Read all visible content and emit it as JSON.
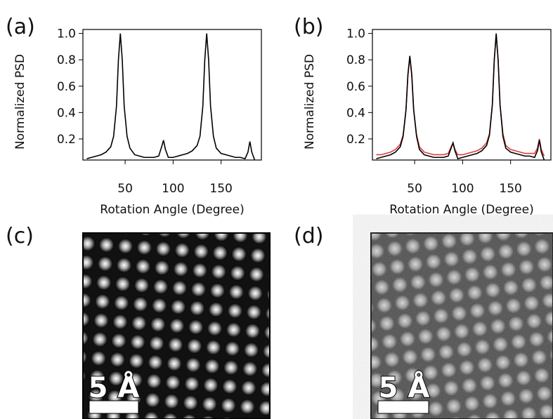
{
  "panels": [
    "(a)",
    "(b)",
    "(c)",
    "(d)"
  ],
  "scale_bars": [
    "5 Å",
    "5 Å"
  ],
  "chart_data": [
    {
      "type": "line",
      "xlabel": "Rotation Angle (Degree)",
      "ylabel": "Normalized PSD",
      "x": [
        10,
        15,
        20,
        25,
        30,
        35,
        38,
        41,
        43,
        45,
        47,
        49,
        52,
        55,
        60,
        65,
        70,
        75,
        80,
        85,
        88,
        90,
        92,
        95,
        100,
        105,
        110,
        115,
        120,
        125,
        128,
        131,
        133,
        135,
        137,
        139,
        142,
        145,
        150,
        155,
        160,
        165,
        170,
        175,
        178,
        180,
        182,
        185
      ],
      "series": [
        {
          "color": "#000000",
          "values": [
            0.05,
            0.06,
            0.07,
            0.08,
            0.1,
            0.14,
            0.22,
            0.45,
            0.8,
            1.0,
            0.8,
            0.45,
            0.22,
            0.13,
            0.08,
            0.07,
            0.06,
            0.06,
            0.06,
            0.07,
            0.14,
            0.19,
            0.12,
            0.06,
            0.06,
            0.07,
            0.08,
            0.09,
            0.11,
            0.15,
            0.22,
            0.45,
            0.8,
            1.0,
            0.8,
            0.45,
            0.22,
            0.13,
            0.09,
            0.08,
            0.07,
            0.06,
            0.06,
            0.05,
            0.1,
            0.18,
            0.1,
            0.04
          ]
        }
      ],
      "xlim": [
        6,
        192
      ],
      "ylim": [
        0.04,
        1.03
      ],
      "xticks": [
        50,
        100,
        150
      ],
      "yticks": [
        0.2,
        0.4,
        0.6,
        0.8,
        {
          "value": 1,
          "label": "1.0"
        }
      ]
    },
    {
      "type": "line",
      "xlabel": "Rotation Angle (Degree)",
      "ylabel": "Normalized PSD",
      "x": [
        10,
        15,
        20,
        25,
        30,
        35,
        38,
        41,
        43,
        45,
        47,
        49,
        52,
        55,
        60,
        65,
        70,
        75,
        80,
        85,
        88,
        90,
        92,
        95,
        100,
        105,
        110,
        115,
        120,
        125,
        128,
        131,
        133,
        135,
        137,
        139,
        142,
        145,
        150,
        155,
        160,
        165,
        170,
        175,
        178,
        180,
        182,
        185
      ],
      "series": [
        {
          "color": "#e03a3a",
          "values": [
            0.08,
            0.08,
            0.09,
            0.1,
            0.12,
            0.16,
            0.23,
            0.42,
            0.68,
            0.82,
            0.68,
            0.42,
            0.23,
            0.14,
            0.1,
            0.09,
            0.08,
            0.08,
            0.08,
            0.09,
            0.14,
            0.17,
            0.12,
            0.08,
            0.08,
            0.09,
            0.1,
            0.11,
            0.13,
            0.17,
            0.24,
            0.46,
            0.8,
            0.99,
            0.8,
            0.46,
            0.24,
            0.15,
            0.12,
            0.11,
            0.1,
            0.09,
            0.09,
            0.09,
            0.13,
            0.2,
            0.12,
            0.07
          ]
        },
        {
          "color": "#000000",
          "values": [
            0.05,
            0.06,
            0.07,
            0.08,
            0.1,
            0.14,
            0.22,
            0.42,
            0.69,
            0.83,
            0.69,
            0.42,
            0.22,
            0.12,
            0.08,
            0.07,
            0.06,
            0.06,
            0.06,
            0.07,
            0.13,
            0.17,
            0.11,
            0.05,
            0.06,
            0.07,
            0.08,
            0.09,
            0.11,
            0.15,
            0.23,
            0.46,
            0.8,
            1.0,
            0.8,
            0.46,
            0.22,
            0.13,
            0.1,
            0.09,
            0.08,
            0.07,
            0.07,
            0.06,
            0.11,
            0.19,
            0.1,
            0.04
          ]
        }
      ],
      "xlim": [
        6,
        192
      ],
      "ylim": [
        0.04,
        1.03
      ],
      "xticks": [
        50,
        100,
        150
      ],
      "yticks": [
        0.2,
        0.4,
        0.6,
        0.8,
        {
          "value": 1,
          "label": "1.0"
        }
      ]
    }
  ]
}
